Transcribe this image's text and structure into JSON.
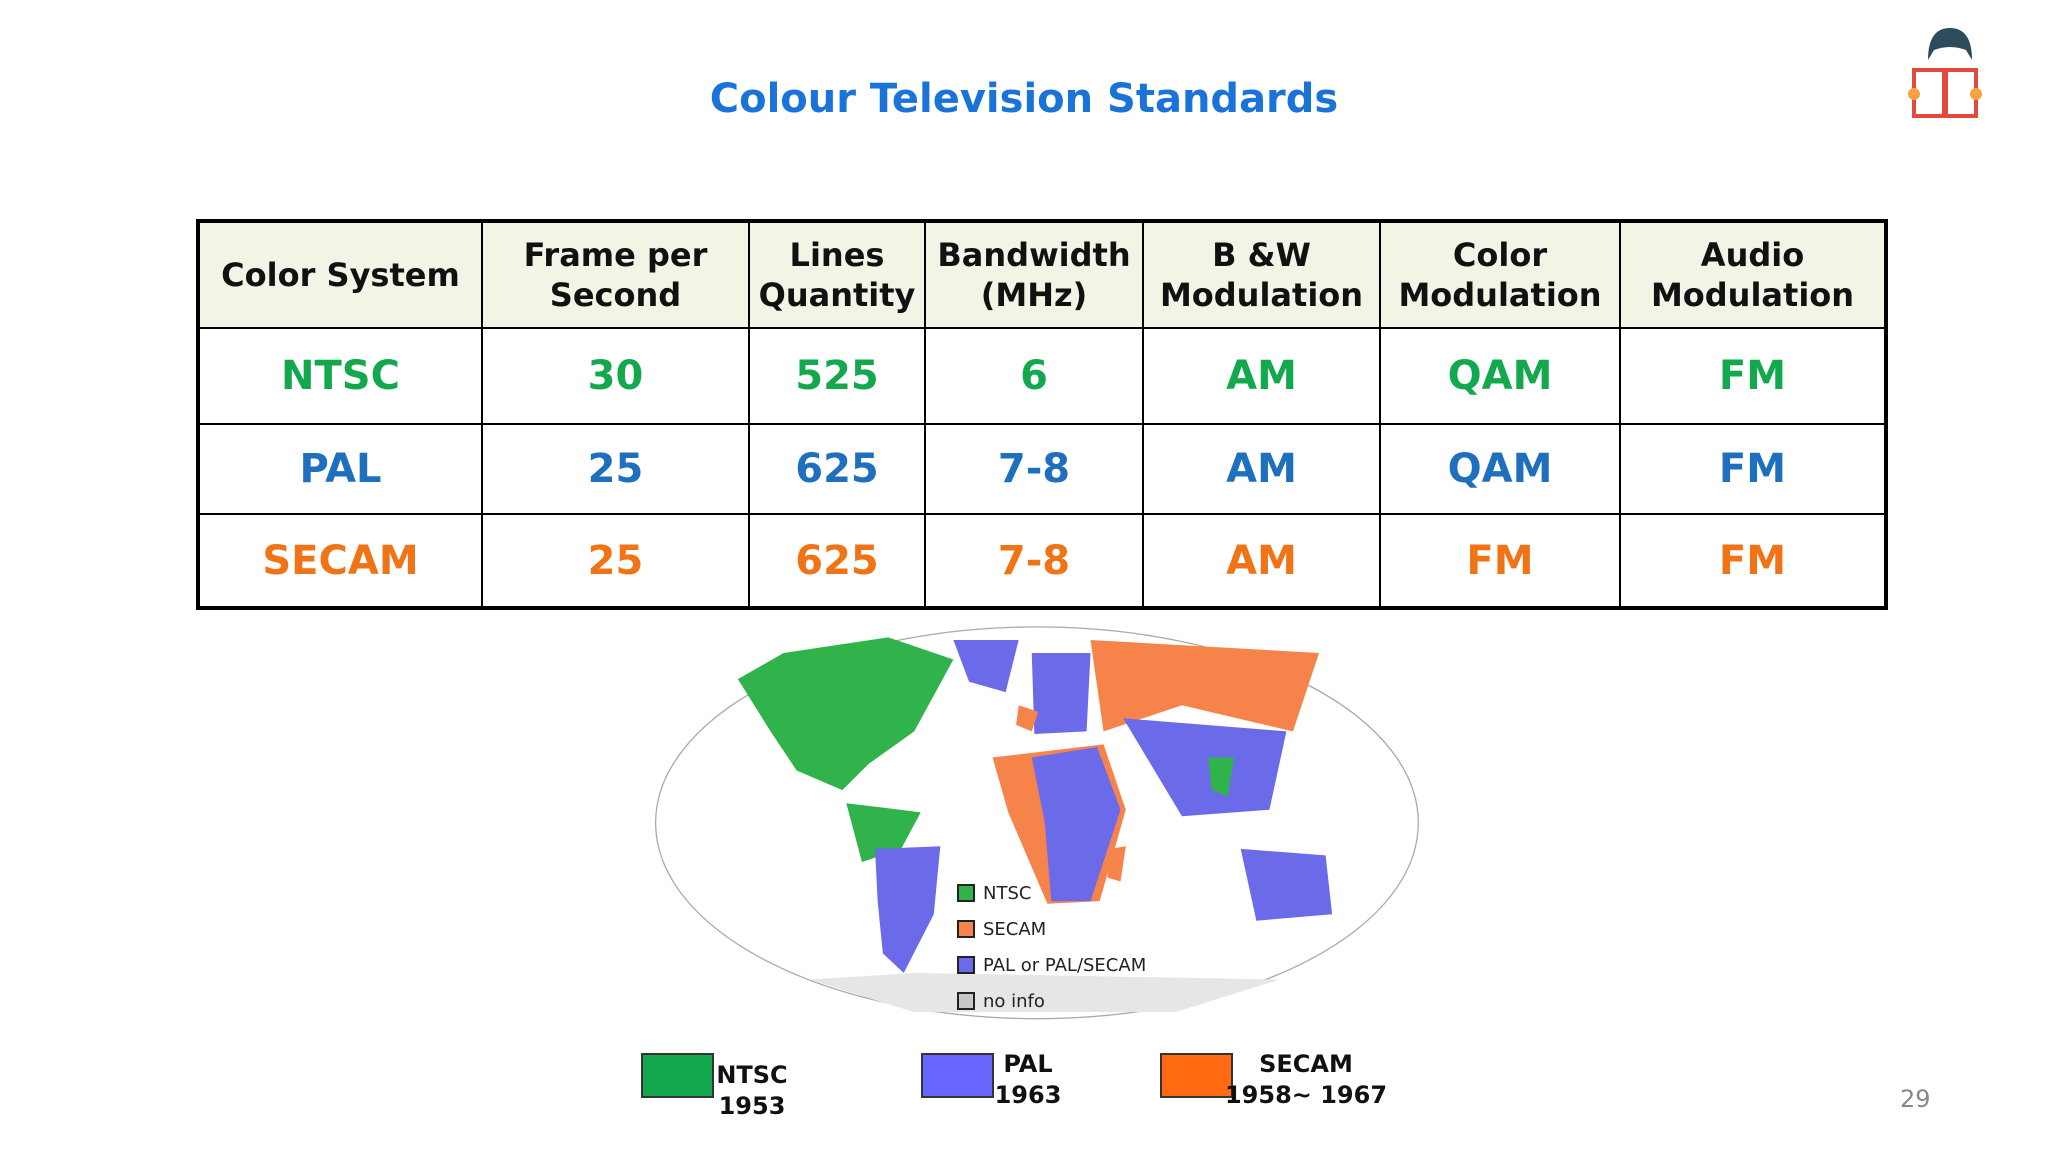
{
  "title": "Colour Television Standards",
  "table": {
    "header": [
      [
        "Color System"
      ],
      [
        "Frame per",
        "Second"
      ],
      [
        "Lines",
        "Quantity"
      ],
      [
        "Bandwidth",
        "(MHz)"
      ],
      [
        "B &W",
        "Modulation"
      ],
      [
        "Color",
        "Modulation"
      ],
      [
        "Audio",
        "Modulation"
      ]
    ],
    "rows": [
      {
        "color": "#14a84e",
        "cells": [
          "NTSC",
          "30",
          "525",
          "6",
          "AM",
          "QAM",
          "FM"
        ]
      },
      {
        "color": "#1f6fbf",
        "cells": [
          "PAL",
          "25",
          "625",
          "7-8",
          "AM",
          "QAM",
          "FM"
        ]
      },
      {
        "color": "#f07416",
        "cells": [
          "SECAM",
          "25",
          "625",
          "7-8",
          "AM",
          "FM",
          "FM"
        ]
      }
    ]
  },
  "map_legend": [
    {
      "label": "NTSC",
      "color": "#2fb34a"
    },
    {
      "label": "SECAM",
      "color": "#f5834a"
    },
    {
      "label": "PAL or PAL/SECAM",
      "color": "#6b6bea"
    },
    {
      "label": "no info",
      "color": "#c8c8c8"
    }
  ],
  "legend": [
    {
      "lines": [
        "NTSC",
        "1953"
      ],
      "color": "#14a84e"
    },
    {
      "lines": [
        "PAL",
        "1963"
      ],
      "color": "#6666ff"
    },
    {
      "lines": [
        "SECAM",
        "1958~ 1967"
      ],
      "color": "#ff6a13"
    }
  ],
  "page_number": "29"
}
